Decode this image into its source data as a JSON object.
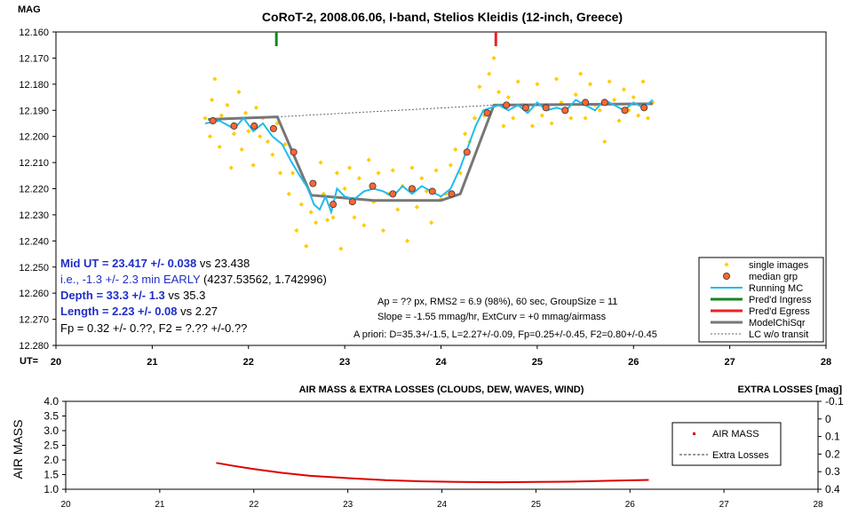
{
  "chart_data": [
    {
      "type": "scatter",
      "title": "CoRoT-2, 2008.06.06, I-band, Stelios Kleidis (12-inch, Greece)",
      "ylabel": "MAG",
      "xlabel": "UT=",
      "xlim": [
        20,
        28
      ],
      "ylim": [
        12.16,
        12.28
      ],
      "y_inverted": true,
      "grid": false,
      "x_ticks": [
        "20",
        "21",
        "22",
        "23",
        "24",
        "25",
        "26",
        "27",
        "28"
      ],
      "y_ticks": [
        "12.160",
        "12.170",
        "12.180",
        "12.190",
        "12.200",
        "12.210",
        "12.220",
        "12.230",
        "12.240",
        "12.250",
        "12.260",
        "12.270",
        "12.280"
      ],
      "legend_position": "bottom-right",
      "annotations": {
        "mid_ut_bold": "Mid UT = 23.417 +/- 0.038",
        "mid_ut_rest": " vs 23.438",
        "early": "i.e., -1.3 +/- 2.3 min EARLY",
        "early_rest": " (4237.53562, 1.742996)",
        "depth_bold": "Depth = 33.3 +/- 1.3",
        "depth_rest": " vs 35.3",
        "length_bold": "Length = 2.23 +/- 0.08",
        "length_rest": " vs 2.27",
        "fp": "Fp = 0.32 +/- 0.??, F2 = ?.?? +/-0.??",
        "ap": "Ap = ?? px, RMS2 = 6.9 (98%), 60 sec, GroupSize = 11",
        "slope": "Slope = -1.55 mmag/hr, ExtCurv = +0 mmag/airmass",
        "apriori": "A priori: D=35.3+/-1.5, L=2.27+/-0.09, Fp=0.25+/-0.45, F2=0.80+/-0.45"
      },
      "predicted_ingress": 22.29,
      "predicted_egress": 24.57,
      "series": [
        {
          "name": "single images",
          "color": "#ffcc00",
          "style": "diamond",
          "x": [
            21.55,
            21.6,
            21.62,
            21.65,
            21.7,
            21.72,
            21.78,
            21.82,
            21.85,
            21.9,
            21.93,
            21.97,
            22.0,
            22.05,
            22.08,
            22.12,
            22.15,
            22.2,
            22.25,
            22.3,
            22.33,
            22.38,
            22.42,
            22.46,
            22.5,
            22.55,
            22.6,
            22.65,
            22.7,
            22.75,
            22.78,
            22.82,
            22.88,
            22.92,
            22.96,
            23.0,
            23.05,
            23.1,
            23.15,
            23.2,
            23.25,
            23.3,
            23.35,
            23.4,
            23.45,
            23.5,
            23.55,
            23.6,
            23.65,
            23.7,
            23.75,
            23.8,
            23.85,
            23.9,
            23.95,
            24.0,
            24.05,
            24.1,
            24.15,
            24.2,
            24.25,
            24.3,
            24.35,
            24.4,
            24.45,
            24.5,
            24.55,
            24.6,
            24.65,
            24.7,
            24.75,
            24.8,
            24.85,
            24.9,
            24.95,
            25.0,
            25.05,
            25.1,
            25.15,
            25.2,
            25.25,
            25.3,
            25.35,
            25.4,
            25.45,
            25.5,
            25.55,
            25.6,
            25.65,
            25.7,
            25.75,
            25.8,
            25.85,
            25.9,
            25.95,
            26.0,
            26.05,
            26.1,
            26.15,
            26.2
          ],
          "y": [
            12.193,
            12.2,
            12.186,
            12.178,
            12.204,
            12.192,
            12.188,
            12.212,
            12.199,
            12.183,
            12.205,
            12.191,
            12.198,
            12.211,
            12.189,
            12.2,
            12.193,
            12.202,
            12.207,
            12.195,
            12.214,
            12.203,
            12.222,
            12.214,
            12.236,
            12.226,
            12.242,
            12.229,
            12.233,
            12.21,
            12.222,
            12.232,
            12.231,
            12.214,
            12.243,
            12.22,
            12.212,
            12.231,
            12.216,
            12.234,
            12.209,
            12.225,
            12.214,
            12.236,
            12.222,
            12.213,
            12.228,
            12.219,
            12.24,
            12.212,
            12.227,
            12.216,
            12.221,
            12.233,
            12.213,
            12.224,
            12.222,
            12.211,
            12.205,
            12.214,
            12.199,
            12.202,
            12.193,
            12.181,
            12.192,
            12.176,
            12.17,
            12.183,
            12.196,
            12.185,
            12.193,
            12.179,
            12.188,
            12.19,
            12.196,
            12.18,
            12.192,
            12.188,
            12.195,
            12.178,
            12.187,
            12.19,
            12.193,
            12.184,
            12.176,
            12.193,
            12.18,
            12.188,
            12.19,
            12.202,
            12.179,
            12.186,
            12.194,
            12.182,
            12.19,
            12.185,
            12.192,
            12.179,
            12.193,
            12.187
          ]
        },
        {
          "name": "median grp",
          "color": "#ff6633",
          "style": "circle",
          "x": [
            21.63,
            21.85,
            22.06,
            22.26,
            22.47,
            22.67,
            22.88,
            23.08,
            23.29,
            23.5,
            23.7,
            23.91,
            24.11,
            24.27,
            24.48,
            24.68,
            24.88,
            25.09,
            25.29,
            25.5,
            25.7,
            25.91,
            26.11
          ],
          "y": [
            12.194,
            12.196,
            12.196,
            12.197,
            12.206,
            12.218,
            12.226,
            12.225,
            12.219,
            12.222,
            12.22,
            12.221,
            12.222,
            12.206,
            12.191,
            12.188,
            12.189,
            12.189,
            12.19,
            12.187,
            12.187,
            12.19,
            12.189
          ]
        },
        {
          "name": "Running MC",
          "color": "#22bbee",
          "style": "line",
          "x": [
            21.55,
            21.7,
            21.85,
            21.95,
            22.05,
            22.15,
            22.25,
            22.35,
            22.45,
            22.55,
            22.62,
            22.68,
            22.74,
            22.8,
            22.86,
            22.92,
            23.0,
            23.1,
            23.2,
            23.3,
            23.4,
            23.5,
            23.6,
            23.7,
            23.8,
            23.9,
            24.0,
            24.1,
            24.2,
            24.28,
            24.36,
            24.44,
            24.52,
            24.6,
            24.7,
            24.8,
            24.9,
            25.0,
            25.1,
            25.2,
            25.3,
            25.4,
            25.5,
            25.6,
            25.7,
            25.8,
            25.9,
            26.0,
            26.1,
            26.2
          ],
          "y": [
            12.195,
            12.194,
            12.197,
            12.193,
            12.198,
            12.195,
            12.2,
            12.203,
            12.21,
            12.216,
            12.22,
            12.226,
            12.228,
            12.223,
            12.229,
            12.22,
            12.223,
            12.224,
            12.221,
            12.22,
            12.221,
            12.223,
            12.219,
            12.222,
            12.219,
            12.221,
            12.223,
            12.22,
            12.212,
            12.204,
            12.196,
            12.19,
            12.189,
            12.188,
            12.19,
            12.188,
            12.191,
            12.187,
            12.19,
            12.189,
            12.19,
            12.186,
            12.188,
            12.19,
            12.186,
            12.188,
            12.19,
            12.187,
            12.189,
            12.186
          ]
        },
        {
          "name": "Pred'd Ingress",
          "color": "#118822",
          "style": "line"
        },
        {
          "name": "Pred'd Egress",
          "color": "#ee2222",
          "style": "line"
        },
        {
          "name": "ModelChiSqr",
          "color": "#777777",
          "style": "line",
          "x": [
            21.58,
            22.3,
            22.65,
            23.3,
            24.0,
            24.2,
            24.55,
            26.2
          ],
          "y": [
            12.1935,
            12.1925,
            12.2225,
            12.2245,
            12.2245,
            12.222,
            12.188,
            12.1875
          ]
        },
        {
          "name": "LC w/o transit",
          "color": "#666666",
          "style": "dashed",
          "x": [
            22.3,
            24.55
          ],
          "y": [
            12.1925,
            12.188
          ]
        }
      ]
    },
    {
      "type": "line",
      "title": "AIR MASS & EXTRA LOSSES (CLOUDS, DEW, WAVES, WIND)",
      "ylabel": "AIR MASS",
      "y2label": "EXTRA LOSSES [mag]",
      "xlim": [
        20,
        28
      ],
      "ylim": [
        1.0,
        4.0
      ],
      "y2lim": [
        -0.1,
        0.4
      ],
      "x_ticks": [
        "20",
        "21",
        "22",
        "23",
        "24",
        "25",
        "26",
        "27",
        "28"
      ],
      "y_ticks": [
        "4.0",
        "3.5",
        "3.0",
        "2.5",
        "2.0",
        "1.5",
        "1.0"
      ],
      "y2_ticks": [
        "-0.1",
        "0",
        "0.1",
        "0.2",
        "0.3",
        "0.4"
      ],
      "legend_position": "right",
      "series": [
        {
          "name": "AIR MASS",
          "color": "#dd0000",
          "style": "line",
          "x": [
            21.6,
            21.8,
            22.0,
            22.3,
            22.6,
            23.0,
            23.4,
            23.8,
            24.2,
            24.6,
            25.0,
            25.4,
            25.8,
            26.2
          ],
          "y": [
            1.9,
            1.79,
            1.69,
            1.56,
            1.46,
            1.38,
            1.31,
            1.27,
            1.25,
            1.24,
            1.25,
            1.26,
            1.29,
            1.32
          ]
        },
        {
          "name": "Extra Losses",
          "color": "#333333",
          "style": "dashed"
        }
      ]
    }
  ]
}
